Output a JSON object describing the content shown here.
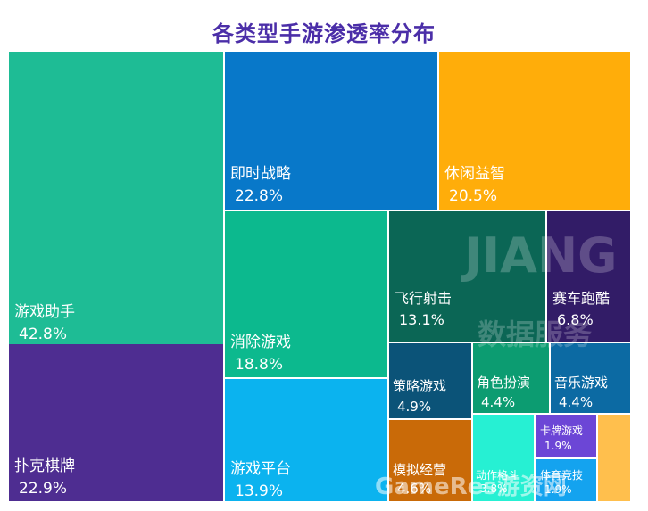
{
  "title": "各类型手游渗透率分布",
  "watermark": {
    "brand": "JIANG",
    "cn": "数据服务",
    "site": "GameRes游资网"
  },
  "chart_data": {
    "type": "treemap",
    "title": "各类型手游渗透率分布",
    "unit": "%",
    "items": [
      {
        "name": "游戏助手",
        "value": 42.8,
        "label": "42.8%",
        "color": "#1ebc95"
      },
      {
        "name": "扑克棋牌",
        "value": 22.9,
        "label": "22.9%",
        "color": "#4e2d91"
      },
      {
        "name": "即时战略",
        "value": 22.8,
        "label": "22.8%",
        "color": "#0878c9"
      },
      {
        "name": "休闲益智",
        "value": 20.5,
        "label": "20.5%",
        "color": "#ffad0a"
      },
      {
        "name": "消除游戏",
        "value": 18.8,
        "label": "18.8%",
        "color": "#0cb98e"
      },
      {
        "name": "游戏平台",
        "value": 13.9,
        "label": "13.9%",
        "color": "#0bb3ef"
      },
      {
        "name": "飞行射击",
        "value": 13.1,
        "label": "13.1%",
        "color": "#0b6655"
      },
      {
        "name": "赛车跑酷",
        "value": 6.8,
        "label": "6.8%",
        "color": "#321c67"
      },
      {
        "name": "策略游戏",
        "value": 4.9,
        "label": "4.9%",
        "color": "#0b5378"
      },
      {
        "name": "角色扮演",
        "value": 4.4,
        "label": "4.4%",
        "color": "#0c9c71"
      },
      {
        "name": "音乐游戏",
        "value": 4.4,
        "label": "4.4%",
        "color": "#0c6aa3"
      },
      {
        "name": "模拟经营",
        "value": 4.6,
        "label": "4.6%",
        "color": "#c96a08"
      },
      {
        "name": "动作格斗",
        "value": 3.8,
        "label": "3.8%",
        "color": "#26f0d3"
      },
      {
        "name": "卡牌游戏",
        "value": 1.9,
        "label": "1.9%",
        "color": "#6c46d6"
      },
      {
        "name": "体育竞技",
        "value": 1.9,
        "label": "1.9%",
        "color": "#14a3ef"
      },
      {
        "name": "",
        "value": 1.0,
        "label": "",
        "color": "#ffbf4d"
      }
    ]
  }
}
